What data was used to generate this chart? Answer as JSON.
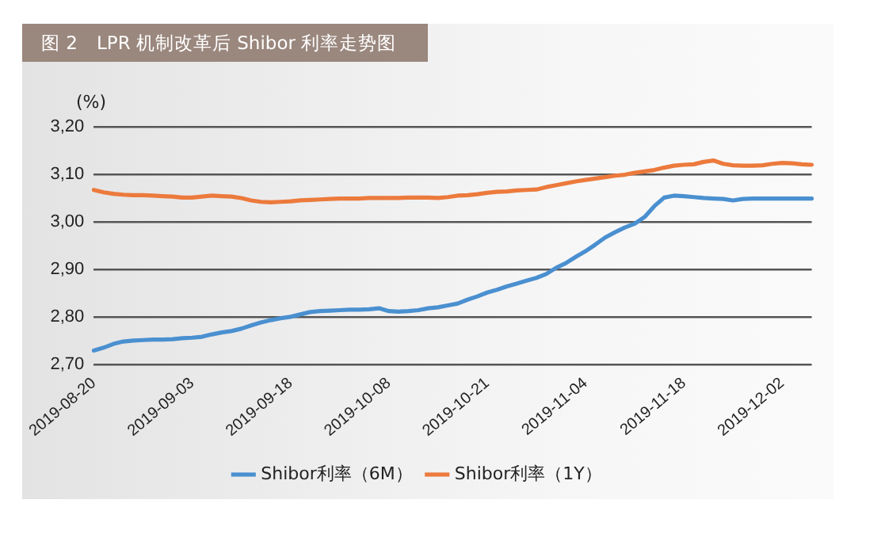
{
  "chart_data": {
    "type": "line",
    "title": "图 2　LPR 机制改革后 Shibor 利率走势图",
    "ylabel": "(%)",
    "categories": [
      "2019-08-20",
      null,
      null,
      null,
      null,
      null,
      null,
      null,
      null,
      null,
      "2019-09-03",
      null,
      null,
      null,
      null,
      null,
      null,
      null,
      null,
      null,
      "2019-09-18",
      null,
      null,
      null,
      null,
      null,
      null,
      null,
      null,
      null,
      "2019-10-08",
      null,
      null,
      null,
      null,
      null,
      null,
      null,
      null,
      null,
      "2019-10-21",
      null,
      null,
      null,
      null,
      null,
      null,
      null,
      null,
      null,
      "2019-11-04",
      null,
      null,
      null,
      null,
      null,
      null,
      null,
      null,
      null,
      "2019-11-18",
      null,
      null,
      null,
      null,
      null,
      null,
      null,
      null,
      null,
      "2019-12-02",
      null,
      null,
      null
    ],
    "series": [
      {
        "name": "Shibor利率（6M）",
        "color": "#4a90d0",
        "values": [
          2.729,
          2.735,
          2.743,
          2.748,
          2.75,
          2.751,
          2.752,
          2.752,
          2.753,
          2.755,
          2.756,
          2.758,
          2.763,
          2.767,
          2.77,
          2.775,
          2.782,
          2.788,
          2.793,
          2.797,
          2.8,
          2.805,
          2.81,
          2.812,
          2.813,
          2.814,
          2.815,
          2.815,
          2.816,
          2.818,
          2.812,
          2.811,
          2.812,
          2.814,
          2.818,
          2.82,
          2.824,
          2.828,
          2.836,
          2.843,
          2.851,
          2.857,
          2.864,
          2.87,
          2.876,
          2.882,
          2.89,
          2.903,
          2.913,
          2.926,
          2.938,
          2.952,
          2.967,
          2.978,
          2.988,
          2.996,
          3.01,
          3.033,
          3.051,
          3.055,
          3.054,
          3.052,
          3.05,
          3.049,
          3.048,
          3.045,
          3.048,
          3.049,
          3.049,
          3.049,
          3.049,
          3.049,
          3.049,
          3.049
        ]
      },
      {
        "name": "Shibor利率（1Y）",
        "color": "#ec7a3c",
        "values": [
          3.067,
          3.062,
          3.059,
          3.057,
          3.056,
          3.056,
          3.055,
          3.054,
          3.053,
          3.051,
          3.051,
          3.053,
          3.055,
          3.054,
          3.053,
          3.05,
          3.045,
          3.042,
          3.041,
          3.042,
          3.043,
          3.045,
          3.046,
          3.047,
          3.048,
          3.049,
          3.049,
          3.049,
          3.05,
          3.05,
          3.05,
          3.05,
          3.051,
          3.051,
          3.051,
          3.05,
          3.052,
          3.055,
          3.056,
          3.058,
          3.061,
          3.063,
          3.064,
          3.066,
          3.067,
          3.068,
          3.073,
          3.077,
          3.081,
          3.085,
          3.088,
          3.091,
          3.094,
          3.097,
          3.099,
          3.103,
          3.106,
          3.109,
          3.114,
          3.118,
          3.12,
          3.121,
          3.126,
          3.129,
          3.122,
          3.119,
          3.118,
          3.118,
          3.119,
          3.122,
          3.124,
          3.123,
          3.121,
          3.12
        ]
      }
    ],
    "ylim": [
      2.7,
      3.2
    ],
    "yticks": [
      {
        "value": 2.7,
        "label": "2,70"
      },
      {
        "value": 2.8,
        "label": "2,80"
      },
      {
        "value": 2.9,
        "label": "2,90"
      },
      {
        "value": 3.0,
        "label": "3,00"
      },
      {
        "value": 3.1,
        "label": "3,10"
      },
      {
        "value": 3.2,
        "label": "3,20"
      }
    ],
    "grid": "y",
    "legend": "bottom",
    "marker": "none",
    "line_style": "solid"
  }
}
